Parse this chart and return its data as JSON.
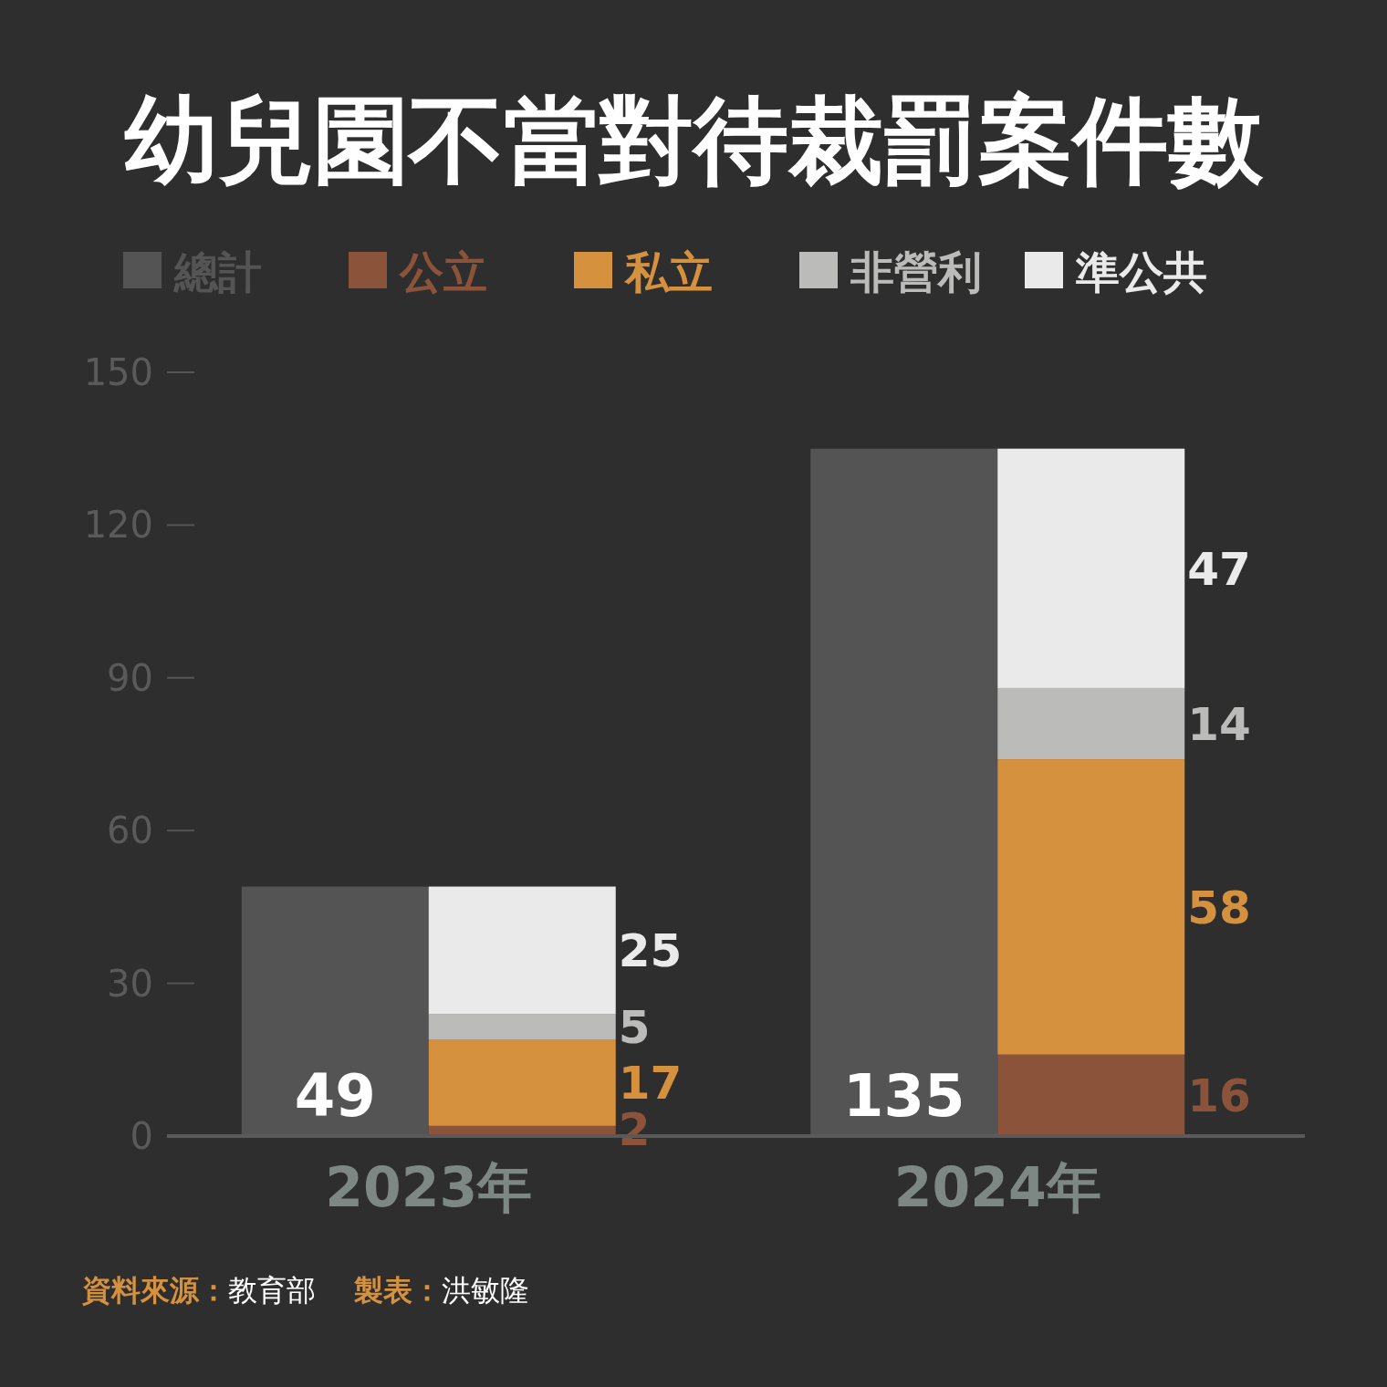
{
  "chart_data": {
    "type": "bar",
    "title": "幼兒園不當對待裁罰案件數",
    "categories": [
      "2023年",
      "2024年"
    ],
    "legend": "top",
    "data_labels": true,
    "grid": false,
    "ylim": [
      0,
      150
    ],
    "yticks": [
      0,
      30,
      60,
      90,
      120,
      150
    ],
    "annotations": [
      "資料來源：教育部",
      "製表：洪敏隆"
    ],
    "series": [
      {
        "name": "總計",
        "color": "#545454",
        "values": [
          49,
          135
        ]
      },
      {
        "name": "公立",
        "color": "#8b5339",
        "values": [
          2,
          16
        ],
        "base": [
          0,
          0
        ]
      },
      {
        "name": "私立",
        "color": "#d5913e",
        "values": [
          17,
          58
        ],
        "base": [
          2,
          16
        ]
      },
      {
        "name": "非營利",
        "color": "#bbbcba",
        "values": [
          5,
          14
        ],
        "base": [
          19,
          74
        ]
      },
      {
        "name": "準公共",
        "color": "#e9eae9",
        "values": [
          25,
          47
        ],
        "base": [
          24,
          88
        ]
      }
    ]
  }
}
